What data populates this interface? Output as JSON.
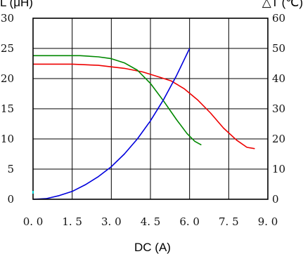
{
  "chart_data": {
    "type": "line",
    "xlabel": "DC (A)",
    "ylabel_left": "L (μH)",
    "ylabel_right": "△T (℃)",
    "xlim": [
      0,
      9
    ],
    "ylim_left": [
      0,
      30
    ],
    "ylim_right": [
      0,
      60
    ],
    "x_ticks": [
      "0. 0",
      "1. 5",
      "3. 0",
      "4. 5",
      "6. 0",
      "7. 5",
      "9. 0"
    ],
    "y_ticks_left": [
      "0",
      "5",
      "10",
      "15",
      "20",
      "25",
      "30"
    ],
    "y_ticks_right": [
      "0",
      "10",
      "20",
      "30",
      "40",
      "50",
      "60"
    ],
    "grid": true,
    "series": [
      {
        "axis": "left",
        "color": "#ee0000",
        "points": [
          [
            0,
            22.4
          ],
          [
            1.5,
            22.4
          ],
          [
            2.5,
            22.2
          ],
          [
            3.5,
            21.7
          ],
          [
            4.2,
            21.1
          ],
          [
            4.8,
            20.3
          ],
          [
            5.3,
            19.6
          ],
          [
            5.8,
            18.3
          ],
          [
            6.3,
            16.5
          ],
          [
            6.8,
            14.3
          ],
          [
            7.3,
            11.8
          ],
          [
            7.8,
            9.8
          ],
          [
            8.2,
            8.6
          ],
          [
            8.5,
            8.4
          ]
        ]
      },
      {
        "axis": "left",
        "color": "#008800",
        "points": [
          [
            0,
            23.8
          ],
          [
            1.0,
            23.8
          ],
          [
            1.8,
            23.8
          ],
          [
            2.5,
            23.6
          ],
          [
            3.0,
            23.3
          ],
          [
            3.5,
            22.6
          ],
          [
            4.0,
            21.4
          ],
          [
            4.5,
            19.2
          ],
          [
            5.0,
            16.3
          ],
          [
            5.5,
            13.2
          ],
          [
            5.9,
            10.9
          ],
          [
            6.2,
            9.6
          ],
          [
            6.45,
            9.0
          ]
        ]
      },
      {
        "axis": "right",
        "color": "#0000dd",
        "points": [
          [
            0,
            0
          ],
          [
            0.5,
            0.2
          ],
          [
            1.0,
            1.2
          ],
          [
            1.5,
            2.6
          ],
          [
            2.0,
            4.8
          ],
          [
            2.5,
            7.5
          ],
          [
            3.0,
            10.8
          ],
          [
            3.5,
            15.0
          ],
          [
            4.0,
            20.0
          ],
          [
            4.5,
            26.0
          ],
          [
            5.0,
            33.0
          ],
          [
            5.5,
            41.0
          ],
          [
            6.0,
            50.0
          ]
        ]
      }
    ]
  }
}
